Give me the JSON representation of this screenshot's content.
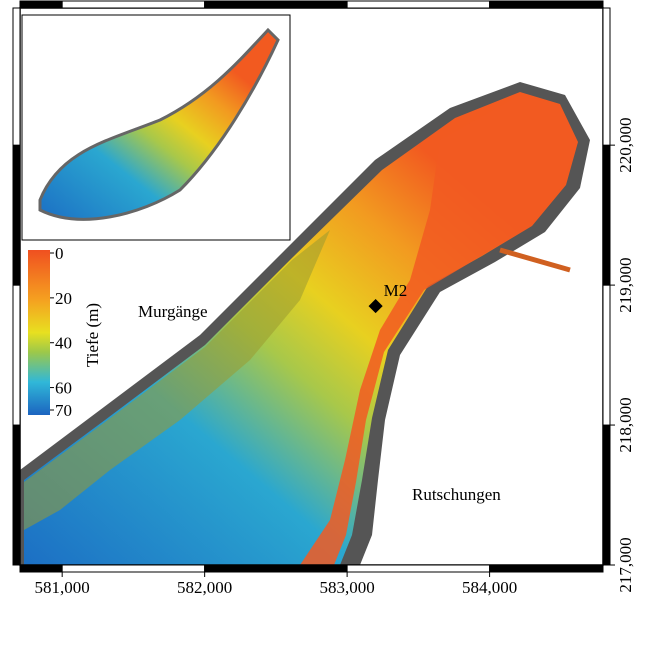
{
  "map": {
    "xlim": [
      580704,
      584796
    ],
    "ylim": [
      217000,
      220980
    ],
    "xticks": [
      {
        "value": 581000,
        "label": "581,000"
      },
      {
        "value": 582000,
        "label": "582,000"
      },
      {
        "value": 583000,
        "label": "583,000"
      },
      {
        "value": 584000,
        "label": "584,000"
      }
    ],
    "yticks": [
      {
        "value": 217000,
        "label": "217,000"
      },
      {
        "value": 218000,
        "label": "218,000"
      },
      {
        "value": 219000,
        "label": "219,000"
      },
      {
        "value": 220000,
        "label": "220,000"
      }
    ],
    "colorbar": {
      "title": "Tiefe (m)",
      "lim": [
        0,
        70
      ],
      "ticks": [
        0,
        20,
        40,
        60,
        70
      ]
    },
    "points": [
      {
        "label": "M2",
        "x": 583200,
        "y": 218850
      }
    ],
    "annotations": [
      "Murgänge",
      "Rutschungen"
    ]
  }
}
